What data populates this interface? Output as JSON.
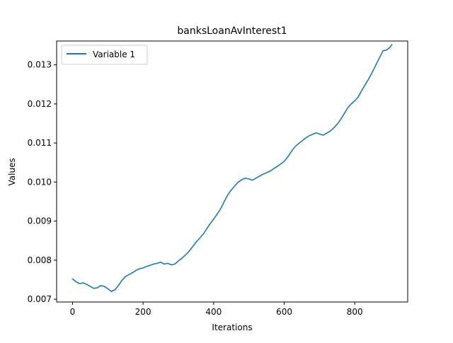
{
  "chart_data": {
    "type": "line",
    "title": "banksLoanAvInterest1",
    "xlabel": "Iterations",
    "ylabel": "Values",
    "xlim": [
      -45,
      950
    ],
    "ylim": [
      0.00693,
      0.01361
    ],
    "xticks": [
      0,
      200,
      400,
      600,
      800
    ],
    "xtick_labels": [
      "0",
      "200",
      "400",
      "600",
      "800"
    ],
    "yticks": [
      0.007,
      0.008,
      0.009,
      0.01,
      0.011,
      0.012,
      0.013
    ],
    "ytick_labels": [
      "0.007",
      "0.008",
      "0.009",
      "0.010",
      "0.011",
      "0.012",
      "0.013"
    ],
    "grid": false,
    "legend": {
      "position": "upper-left",
      "entries": [
        "Variable 1"
      ]
    },
    "series": [
      {
        "name": "Variable 1",
        "color": "#1f77b4",
        "x": [
          0,
          10,
          20,
          30,
          40,
          50,
          60,
          70,
          80,
          90,
          100,
          110,
          120,
          130,
          140,
          150,
          160,
          170,
          180,
          190,
          200,
          210,
          220,
          230,
          240,
          250,
          260,
          270,
          280,
          290,
          300,
          310,
          320,
          330,
          340,
          350,
          360,
          370,
          380,
          390,
          400,
          410,
          420,
          430,
          440,
          450,
          460,
          470,
          480,
          490,
          500,
          510,
          520,
          530,
          540,
          550,
          560,
          570,
          580,
          590,
          600,
          610,
          620,
          630,
          640,
          650,
          660,
          670,
          680,
          690,
          700,
          710,
          720,
          730,
          740,
          750,
          760,
          770,
          780,
          790,
          800,
          810,
          820,
          830,
          840,
          850,
          860,
          870,
          880,
          890,
          900,
          905
        ],
        "y": [
          0.00752,
          0.00745,
          0.0074,
          0.00742,
          0.00738,
          0.00733,
          0.00728,
          0.00729,
          0.00735,
          0.00733,
          0.00727,
          0.0072,
          0.00724,
          0.00735,
          0.00748,
          0.00758,
          0.00763,
          0.00768,
          0.00774,
          0.00778,
          0.0078,
          0.00784,
          0.00787,
          0.0079,
          0.00792,
          0.00795,
          0.0079,
          0.00792,
          0.00788,
          0.0079,
          0.00798,
          0.00805,
          0.00813,
          0.00822,
          0.00834,
          0.00846,
          0.00856,
          0.00866,
          0.0088,
          0.00893,
          0.00905,
          0.00918,
          0.00932,
          0.0095,
          0.00967,
          0.0098,
          0.0099,
          0.01,
          0.01006,
          0.0101,
          0.01008,
          0.01005,
          0.0101,
          0.01015,
          0.0102,
          0.01024,
          0.01028,
          0.01034,
          0.0104,
          0.01046,
          0.01053,
          0.01064,
          0.01078,
          0.0109,
          0.01098,
          0.01105,
          0.01112,
          0.01118,
          0.01122,
          0.01126,
          0.01123,
          0.0112,
          0.01125,
          0.0113,
          0.01138,
          0.01148,
          0.0116,
          0.01175,
          0.0119,
          0.012,
          0.01208,
          0.01218,
          0.01235,
          0.0125,
          0.01265,
          0.01282,
          0.013,
          0.01318,
          0.01336,
          0.01338,
          0.01345,
          0.01352
        ]
      }
    ]
  }
}
